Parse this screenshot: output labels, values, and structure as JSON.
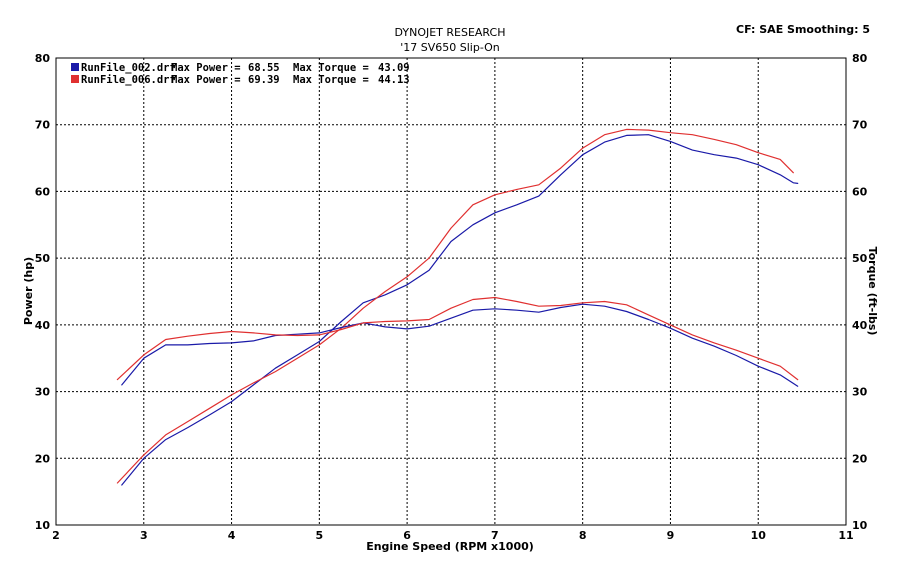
{
  "header": {
    "title": "DYNOJET RESEARCH",
    "subtitle": "'17 SV650 Slip-On",
    "cf_label": "CF: SAE  Smoothing: 5"
  },
  "chart_data": {
    "type": "line",
    "title": "DYNOJET RESEARCH",
    "subtitle": "'17 SV650 Slip-On",
    "xlabel": "Engine Speed (RPM x1000)",
    "ylabel_left": "Power (hp)",
    "ylabel_right": "Torque (ft-lbs)",
    "xlim": [
      2,
      11
    ],
    "ylim": [
      10,
      80
    ],
    "xticks": [
      "2",
      "3",
      "4",
      "5",
      "6",
      "7",
      "8",
      "9",
      "10",
      "11"
    ],
    "yticks": [
      "10",
      "20",
      "30",
      "40",
      "50",
      "60",
      "70",
      "80"
    ],
    "grid": true,
    "legend_position": "top-left",
    "legend": [
      {
        "file": "RunFile_002.drf",
        "max_power_label": "Max Power =",
        "max_power": "68.55",
        "max_torque_label": "Max Torque =",
        "max_torque": "43.09",
        "color": "#1a1aa8"
      },
      {
        "file": "RunFile_006.drf",
        "max_power_label": "Max Power =",
        "max_power": "69.39",
        "max_torque_label": "Max Torque =",
        "max_torque": "44.13",
        "color": "#e03030"
      }
    ],
    "series": [
      {
        "name": "RunFile_002.drf",
        "kind": "power",
        "color": "#1a1aa8",
        "x": [
          2.75,
          3.0,
          3.25,
          3.5,
          3.75,
          4.0,
          4.25,
          4.5,
          4.75,
          5.0,
          5.25,
          5.5,
          5.75,
          6.0,
          6.25,
          6.5,
          6.75,
          7.0,
          7.25,
          7.5,
          7.75,
          8.0,
          8.25,
          8.5,
          8.75,
          9.0,
          9.25,
          9.5,
          9.75,
          10.0,
          10.25,
          10.4,
          10.45
        ],
        "y": [
          16.0,
          20.0,
          22.8,
          24.6,
          26.5,
          28.5,
          31.0,
          33.5,
          35.5,
          37.5,
          40.5,
          43.3,
          44.5,
          46.0,
          48.2,
          52.5,
          55.0,
          56.8,
          58.0,
          59.3,
          62.5,
          65.5,
          67.4,
          68.4,
          68.5,
          67.5,
          66.2,
          65.5,
          65.0,
          64.0,
          62.5,
          61.3,
          61.2
        ]
      },
      {
        "name": "RunFile_006.drf",
        "kind": "power",
        "color": "#e03030",
        "x": [
          2.7,
          3.0,
          3.25,
          3.5,
          3.75,
          4.0,
          4.25,
          4.5,
          4.75,
          5.0,
          5.25,
          5.5,
          5.75,
          6.0,
          6.25,
          6.5,
          6.75,
          7.0,
          7.25,
          7.5,
          7.75,
          8.0,
          8.25,
          8.5,
          8.75,
          9.0,
          9.25,
          9.5,
          9.75,
          10.0,
          10.25,
          10.4
        ],
        "y": [
          16.3,
          20.5,
          23.5,
          25.5,
          27.5,
          29.5,
          31.3,
          33.0,
          35.0,
          37.0,
          39.5,
          42.5,
          45.0,
          47.2,
          50.0,
          54.5,
          58.0,
          59.5,
          60.3,
          61.0,
          63.5,
          66.5,
          68.5,
          69.3,
          69.2,
          68.8,
          68.5,
          67.8,
          67.0,
          65.8,
          64.8,
          62.8
        ]
      },
      {
        "name": "RunFile_002.drf",
        "kind": "torque",
        "color": "#1a1aa8",
        "x": [
          2.75,
          3.0,
          3.25,
          3.5,
          3.75,
          4.0,
          4.25,
          4.5,
          4.75,
          5.0,
          5.25,
          5.5,
          5.75,
          6.0,
          6.25,
          6.5,
          6.75,
          7.0,
          7.25,
          7.5,
          7.75,
          8.0,
          8.25,
          8.5,
          8.75,
          9.0,
          9.25,
          9.5,
          9.75,
          10.0,
          10.25,
          10.45
        ],
        "y": [
          31.0,
          35.0,
          37.0,
          37.0,
          37.2,
          37.3,
          37.6,
          38.4,
          38.6,
          38.8,
          39.6,
          40.3,
          39.7,
          39.4,
          39.8,
          41.0,
          42.2,
          42.4,
          42.2,
          41.9,
          42.6,
          43.1,
          42.8,
          42.0,
          40.8,
          39.5,
          38.0,
          36.8,
          35.4,
          33.8,
          32.5,
          30.8
        ]
      },
      {
        "name": "RunFile_006.drf",
        "kind": "torque",
        "color": "#e03030",
        "x": [
          2.7,
          3.0,
          3.25,
          3.5,
          3.75,
          4.0,
          4.25,
          4.5,
          4.75,
          5.0,
          5.25,
          5.5,
          5.75,
          6.0,
          6.25,
          6.5,
          6.75,
          7.0,
          7.25,
          7.5,
          7.75,
          8.0,
          8.25,
          8.5,
          8.75,
          9.0,
          9.25,
          9.5,
          9.75,
          10.0,
          10.25,
          10.45
        ],
        "y": [
          31.8,
          35.5,
          37.8,
          38.3,
          38.7,
          39.0,
          38.8,
          38.5,
          38.4,
          38.5,
          39.3,
          40.3,
          40.5,
          40.6,
          40.8,
          42.5,
          43.8,
          44.1,
          43.5,
          42.8,
          42.9,
          43.3,
          43.5,
          43.0,
          41.5,
          40.0,
          38.5,
          37.3,
          36.2,
          35.0,
          33.8,
          31.8
        ]
      }
    ]
  }
}
